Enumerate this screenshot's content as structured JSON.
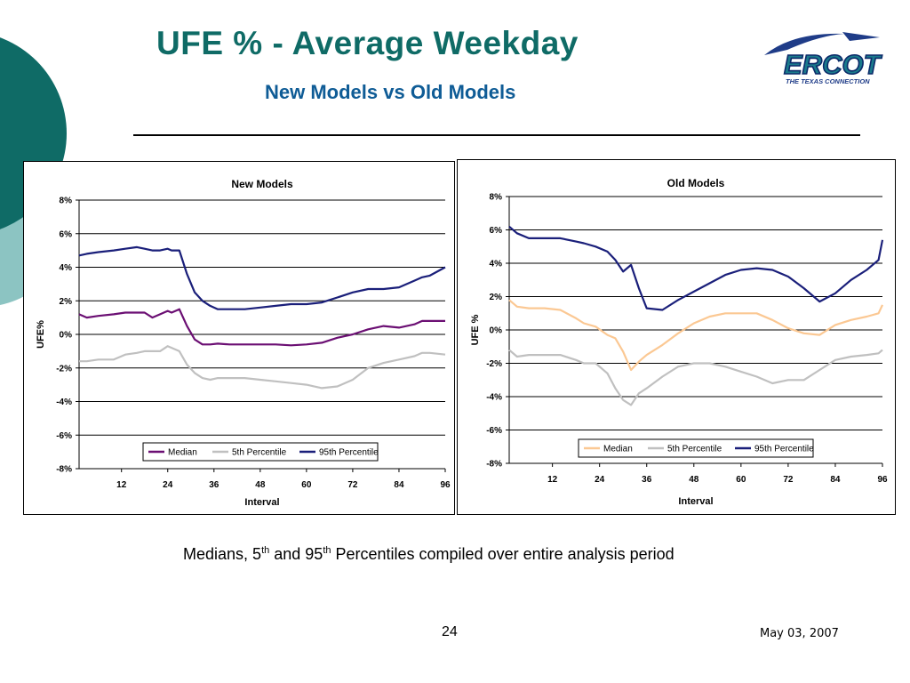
{
  "slide": {
    "title": "UFE % - Average Weekday",
    "subtitle": "New Models vs Old Models",
    "caption_pre": "Medians, 5",
    "caption_sup1": "th",
    "caption_mid": " and 95",
    "caption_sup2": "th",
    "caption_post": " Percentiles compiled over entire analysis period",
    "page_number": "24",
    "date": "May 03, 2007"
  },
  "logo": {
    "text": "ERCOT",
    "tagline": "THE TEXAS CONNECTION"
  },
  "colors": {
    "title": "#0f6b66",
    "subtitle": "#0f5c96",
    "deco_dark": "#0f6b66",
    "deco_light": "#8cc4c2"
  },
  "chart_data": [
    {
      "type": "line",
      "title": "New Models",
      "xlabel": "Interval",
      "ylabel": "UFE%",
      "xlim": [
        1,
        96
      ],
      "ylim": [
        -8,
        8
      ],
      "xticks": [
        12,
        24,
        36,
        48,
        60,
        72,
        84,
        96
      ],
      "yticks": [
        "8%",
        "6%",
        "4%",
        "2%",
        "0%",
        "-2%",
        "-4%",
        "-6%",
        "-8%"
      ],
      "grid": true,
      "legend_position": "bottom-right",
      "x_knots": [
        1,
        3,
        6,
        10,
        13,
        16,
        18,
        20,
        22,
        24,
        25,
        27,
        29,
        31,
        33,
        35,
        37,
        40,
        44,
        48,
        52,
        56,
        60,
        64,
        68,
        72,
        76,
        80,
        84,
        88,
        90,
        92,
        96
      ],
      "series": [
        {
          "name": "Median",
          "color": "#6b0f73",
          "values": [
            1.2,
            1.0,
            1.1,
            1.2,
            1.3,
            1.3,
            1.3,
            1.0,
            1.2,
            1.4,
            1.3,
            1.5,
            0.5,
            -0.3,
            -0.6,
            -0.6,
            -0.55,
            -0.6,
            -0.6,
            -0.6,
            -0.6,
            -0.65,
            -0.6,
            -0.5,
            -0.2,
            0.0,
            0.3,
            0.5,
            0.4,
            0.6,
            0.8,
            0.8,
            0.8
          ]
        },
        {
          "name": "5th Percentile",
          "color": "#c0c0c0",
          "values": [
            -1.6,
            -1.6,
            -1.5,
            -1.5,
            -1.2,
            -1.1,
            -1.0,
            -1.0,
            -1.0,
            -0.7,
            -0.8,
            -1.0,
            -1.8,
            -2.3,
            -2.6,
            -2.7,
            -2.6,
            -2.6,
            -2.6,
            -2.7,
            -2.8,
            -2.9,
            -3.0,
            -3.2,
            -3.1,
            -2.7,
            -2.0,
            -1.7,
            -1.5,
            -1.3,
            -1.1,
            -1.1,
            -1.2
          ]
        },
        {
          "name": "95th Percentile",
          "color": "#1a1f7a",
          "values": [
            4.7,
            4.8,
            4.9,
            5.0,
            5.1,
            5.2,
            5.1,
            5.0,
            5.0,
            5.1,
            5.0,
            5.0,
            3.6,
            2.5,
            2.0,
            1.7,
            1.5,
            1.5,
            1.5,
            1.6,
            1.7,
            1.8,
            1.8,
            1.9,
            2.2,
            2.5,
            2.7,
            2.7,
            2.8,
            3.2,
            3.4,
            3.5,
            4.0
          ]
        }
      ]
    },
    {
      "type": "line",
      "title": "Old Models",
      "xlabel": "Interval",
      "ylabel": "UFE %",
      "xlim": [
        1,
        96
      ],
      "ylim": [
        -8,
        8
      ],
      "xticks": [
        12,
        24,
        36,
        48,
        60,
        72,
        84,
        96
      ],
      "yticks": [
        "8%",
        "6%",
        "4%",
        "2%",
        "0%",
        "-2%",
        "-4%",
        "-6%",
        "-8%"
      ],
      "grid": true,
      "legend_position": "bottom-right",
      "x_knots": [
        1,
        3,
        6,
        10,
        14,
        18,
        20,
        23,
        26,
        28,
        30,
        32,
        34,
        36,
        40,
        44,
        48,
        52,
        56,
        60,
        64,
        68,
        72,
        76,
        80,
        84,
        88,
        92,
        95,
        96
      ],
      "series": [
        {
          "name": "Median",
          "color": "#fbc893",
          "values": [
            1.8,
            1.4,
            1.3,
            1.3,
            1.2,
            0.7,
            0.4,
            0.2,
            -0.3,
            -0.5,
            -1.3,
            -2.4,
            -1.9,
            -1.5,
            -0.9,
            -0.2,
            0.4,
            0.8,
            1.0,
            1.0,
            1.0,
            0.6,
            0.1,
            -0.2,
            -0.3,
            0.3,
            0.6,
            0.8,
            1.0,
            1.5
          ]
        },
        {
          "name": "5th Percentile",
          "color": "#c0c0c0",
          "values": [
            -1.2,
            -1.6,
            -1.5,
            -1.5,
            -1.5,
            -1.8,
            -2.0,
            -2.0,
            -2.6,
            -3.5,
            -4.2,
            -4.5,
            -3.8,
            -3.5,
            -2.8,
            -2.2,
            -2.0,
            -2.0,
            -2.2,
            -2.5,
            -2.8,
            -3.2,
            -3.0,
            -3.0,
            -2.4,
            -1.8,
            -1.6,
            -1.5,
            -1.4,
            -1.2
          ]
        },
        {
          "name": "95th Percentile",
          "color": "#1a1f7a",
          "values": [
            6.2,
            5.8,
            5.5,
            5.5,
            5.5,
            5.3,
            5.2,
            5.0,
            4.7,
            4.2,
            3.5,
            3.9,
            2.5,
            1.3,
            1.2,
            1.8,
            2.3,
            2.8,
            3.3,
            3.6,
            3.7,
            3.6,
            3.2,
            2.5,
            1.7,
            2.2,
            3.0,
            3.6,
            4.2,
            5.4
          ]
        }
      ]
    }
  ]
}
